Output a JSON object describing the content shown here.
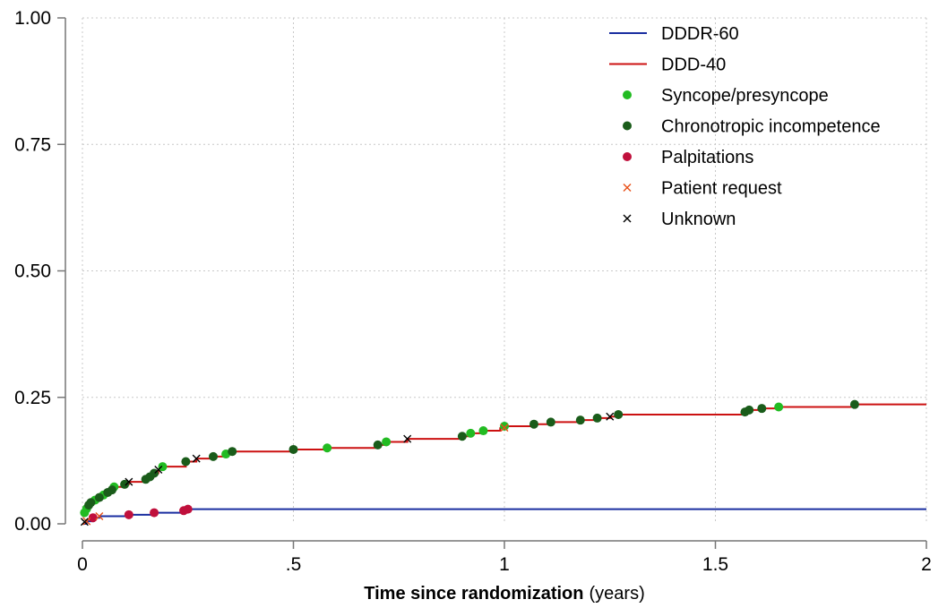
{
  "chart_data": {
    "type": "line",
    "title": "",
    "xlabel_bold": "Time since randomization",
    "xlabel_unit": "(years)",
    "ylabel": "",
    "xlim": [
      0,
      2
    ],
    "ylim": [
      0,
      1
    ],
    "x_ticks": [
      {
        "value": 0,
        "label": "0"
      },
      {
        "value": 0.5,
        "label": ".5"
      },
      {
        "value": 1,
        "label": "1"
      },
      {
        "value": 1.5,
        "label": "1.5"
      },
      {
        "value": 2,
        "label": "2"
      }
    ],
    "y_ticks": [
      {
        "value": 0,
        "label": "0.00"
      },
      {
        "value": 0.25,
        "label": "0.25"
      },
      {
        "value": 0.5,
        "label": "0.50"
      },
      {
        "value": 0.75,
        "label": "0.75"
      },
      {
        "value": 1,
        "label": "1.00"
      }
    ],
    "grid": true,
    "legend_position": "top-right",
    "series": [
      {
        "name": "DDDR-60",
        "kind": "step",
        "color": "#1a2ea0",
        "points": [
          [
            0,
            0
          ],
          [
            0.01,
            0.005
          ],
          [
            0.025,
            0.012
          ],
          [
            0.04,
            0.015
          ],
          [
            0.11,
            0.018
          ],
          [
            0.17,
            0.022
          ],
          [
            0.24,
            0.026
          ],
          [
            0.25,
            0.029
          ],
          [
            2,
            0.029
          ]
        ]
      },
      {
        "name": "DDD-40",
        "kind": "step",
        "color": "#cc1111",
        "points": [
          [
            0,
            0.015
          ],
          [
            0.005,
            0.022
          ],
          [
            0.01,
            0.03
          ],
          [
            0.015,
            0.037
          ],
          [
            0.02,
            0.042
          ],
          [
            0.03,
            0.047
          ],
          [
            0.04,
            0.052
          ],
          [
            0.05,
            0.057
          ],
          [
            0.06,
            0.062
          ],
          [
            0.07,
            0.067
          ],
          [
            0.075,
            0.073
          ],
          [
            0.1,
            0.078
          ],
          [
            0.11,
            0.083
          ],
          [
            0.15,
            0.088
          ],
          [
            0.16,
            0.093
          ],
          [
            0.17,
            0.1
          ],
          [
            0.18,
            0.107
          ],
          [
            0.19,
            0.113
          ],
          [
            0.245,
            0.123
          ],
          [
            0.27,
            0.129
          ],
          [
            0.31,
            0.133
          ],
          [
            0.34,
            0.138
          ],
          [
            0.355,
            0.143
          ],
          [
            0.5,
            0.147
          ],
          [
            0.58,
            0.15
          ],
          [
            0.7,
            0.156
          ],
          [
            0.72,
            0.162
          ],
          [
            0.77,
            0.168
          ],
          [
            0.9,
            0.173
          ],
          [
            0.92,
            0.179
          ],
          [
            0.95,
            0.184
          ],
          [
            0.99,
            0.189
          ],
          [
            1,
            0.193
          ],
          [
            1.07,
            0.197
          ],
          [
            1.11,
            0.201
          ],
          [
            1.18,
            0.205
          ],
          [
            1.22,
            0.209
          ],
          [
            1.25,
            0.212
          ],
          [
            1.27,
            0.216
          ],
          [
            1.57,
            0.221
          ],
          [
            1.58,
            0.225
          ],
          [
            1.61,
            0.228
          ],
          [
            1.65,
            0.231
          ],
          [
            1.83,
            0.236
          ],
          [
            2,
            0.236
          ]
        ]
      }
    ],
    "markers": [
      {
        "name": "Syncope/presyncope",
        "symbol": "circle",
        "color": "#22bb22",
        "points": [
          [
            0.005,
            0.022
          ],
          [
            0.01,
            0.03
          ],
          [
            0.03,
            0.047
          ],
          [
            0.05,
            0.057
          ],
          [
            0.075,
            0.073
          ],
          [
            0.19,
            0.113
          ],
          [
            0.34,
            0.138
          ],
          [
            0.58,
            0.15
          ],
          [
            0.72,
            0.162
          ],
          [
            0.92,
            0.179
          ],
          [
            0.95,
            0.184
          ],
          [
            1,
            0.193
          ],
          [
            1.65,
            0.231
          ]
        ]
      },
      {
        "name": "Chronotropic incompetence",
        "symbol": "circle",
        "color": "#1a5c1a",
        "points": [
          [
            0.015,
            0.037
          ],
          [
            0.02,
            0.042
          ],
          [
            0.04,
            0.052
          ],
          [
            0.06,
            0.062
          ],
          [
            0.07,
            0.067
          ],
          [
            0.1,
            0.078
          ],
          [
            0.15,
            0.088
          ],
          [
            0.16,
            0.093
          ],
          [
            0.17,
            0.1
          ],
          [
            0.245,
            0.123
          ],
          [
            0.31,
            0.133
          ],
          [
            0.355,
            0.143
          ],
          [
            0.5,
            0.147
          ],
          [
            0.7,
            0.156
          ],
          [
            0.9,
            0.173
          ],
          [
            1.07,
            0.197
          ],
          [
            1.11,
            0.201
          ],
          [
            1.18,
            0.205
          ],
          [
            1.22,
            0.209
          ],
          [
            1.27,
            0.216
          ],
          [
            1.57,
            0.221
          ],
          [
            1.58,
            0.225
          ],
          [
            1.61,
            0.228
          ],
          [
            1.83,
            0.236
          ]
        ]
      },
      {
        "name": "Palpitations",
        "symbol": "circle",
        "color": "#c0103c",
        "points": [
          [
            0.025,
            0.012
          ],
          [
            0.11,
            0.018
          ],
          [
            0.17,
            0.022
          ],
          [
            0.24,
            0.026
          ],
          [
            0.25,
            0.029
          ]
        ]
      },
      {
        "name": "Patient request",
        "symbol": "cross",
        "color": "#e8501a",
        "points": [
          [
            0.01,
            0.005
          ],
          [
            0.04,
            0.015
          ],
          [
            1,
            0.19
          ]
        ]
      },
      {
        "name": "Unknown",
        "symbol": "cross",
        "color": "#000000",
        "points": [
          [
            0.005,
            0.004
          ],
          [
            0.11,
            0.083
          ],
          [
            0.18,
            0.107
          ],
          [
            0.27,
            0.129
          ],
          [
            0.77,
            0.168
          ],
          [
            1.25,
            0.212
          ]
        ]
      }
    ]
  }
}
